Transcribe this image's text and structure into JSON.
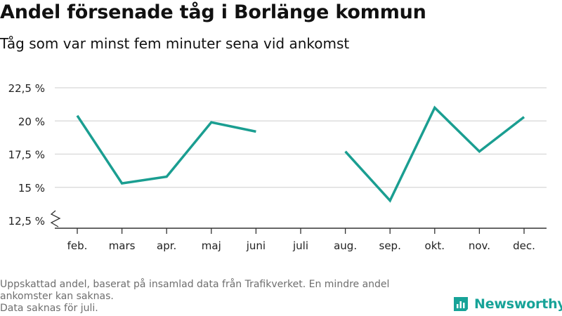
{
  "title": "Andel försenade tåg i Borlänge kommun",
  "subtitle": "Tåg som var minst fem minuter sena vid ankomst",
  "chart_data": {
    "type": "line",
    "categories": [
      "feb.",
      "mars",
      "apr.",
      "maj",
      "juni",
      "juli",
      "aug.",
      "sep.",
      "okt.",
      "nov.",
      "dec."
    ],
    "series": [
      {
        "values": [
          20.4,
          15.3,
          15.8,
          19.9,
          19.2,
          null,
          17.7,
          14.0,
          21.0,
          17.7,
          20.3
        ]
      }
    ],
    "yticks": [
      12.5,
      15,
      17.5,
      20,
      22.5
    ],
    "ytick_labels": [
      "12,5 %",
      "15 %",
      "17,5 %",
      "20 %",
      "22,5 %"
    ],
    "ylim": [
      12.5,
      22.5
    ],
    "grid": true,
    "line_color": "#1a9e91",
    "grid_color": "#dddddd",
    "axis_break": true
  },
  "footnote": {
    "line1": "Uppskattad andel, baserat på insamlad data från Trafikverket. En mindre andel ankomster kan saknas.",
    "line2": "Data saknas för juli."
  },
  "brand": {
    "name": "Newsworthy",
    "icon": "newsworthy-logo-icon",
    "color": "#17a398"
  }
}
